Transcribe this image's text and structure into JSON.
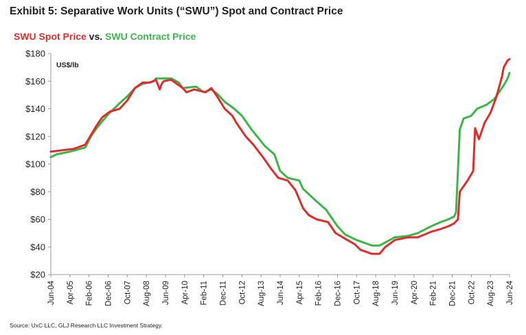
{
  "header": {
    "exhibit_title": "Exhibit 5: Separative Work Units (“SWU”) Spot and Contract Price"
  },
  "footer": {
    "source": "Source: UxC LLC, GLJ Research LLC Investment Strategy."
  },
  "colors": {
    "spot": "#e02b2b",
    "contract": "#3bb54a",
    "text": "#1f1f1f",
    "axis": "#999999"
  },
  "chart_data": {
    "type": "line",
    "title_parts": {
      "spot": "SWU Spot Price",
      "vs": " vs. ",
      "contract": "SWU Contract Price"
    },
    "unit_label": "US$/lb",
    "ylim": [
      20,
      180
    ],
    "yticks": [
      20,
      40,
      60,
      80,
      100,
      120,
      140,
      160,
      180
    ],
    "ytick_labels": [
      "$20",
      "$40",
      "$60",
      "$80",
      "$100",
      "$120",
      "$140",
      "$160",
      "$180"
    ],
    "xlim": [
      "2004-06",
      "2024-06"
    ],
    "xticks": [
      "2004-06",
      "2005-04",
      "2006-02",
      "2006-12",
      "2007-10",
      "2008-08",
      "2009-06",
      "2010-04",
      "2011-02",
      "2011-12",
      "2012-10",
      "2013-08",
      "2014-06",
      "2015-04",
      "2016-02",
      "2016-12",
      "2017-10",
      "2018-08",
      "2019-06",
      "2020-04",
      "2021-02",
      "2021-12",
      "2022-10",
      "2023-08",
      "2024-06"
    ],
    "xtick_labels": [
      "Jun-04",
      "Apr-05",
      "Feb-06",
      "Dec-06",
      "Oct-07",
      "Aug-08",
      "Jun-09",
      "Apr-10",
      "Feb-11",
      "Dec-11",
      "Oct-12",
      "Aug-13",
      "Jun-14",
      "Apr-15",
      "Feb-16",
      "Dec-16",
      "Oct-17",
      "Aug-18",
      "Jun-19",
      "Apr-20",
      "Feb-21",
      "Dec-21",
      "Oct-22",
      "Aug-23",
      "Jun-24"
    ],
    "legend": "none",
    "grid": false,
    "series": [
      {
        "name": "SWU Spot Price",
        "color": "#e02b2b",
        "points": [
          [
            "2004-06",
            109
          ],
          [
            "2005-06",
            111
          ],
          [
            "2005-12",
            114
          ],
          [
            "2006-03",
            121
          ],
          [
            "2006-06",
            128
          ],
          [
            "2006-09",
            134
          ],
          [
            "2007-01",
            138
          ],
          [
            "2007-06",
            140
          ],
          [
            "2007-10",
            146
          ],
          [
            "2008-02",
            155
          ],
          [
            "2008-06",
            159
          ],
          [
            "2008-10",
            159
          ],
          [
            "2009-01",
            161
          ],
          [
            "2009-03",
            154
          ],
          [
            "2009-04",
            158
          ],
          [
            "2009-05",
            160
          ],
          [
            "2009-09",
            161
          ],
          [
            "2010-03",
            155
          ],
          [
            "2010-05",
            152
          ],
          [
            "2010-09",
            154
          ],
          [
            "2011-03",
            152
          ],
          [
            "2011-06",
            155
          ],
          [
            "2011-09",
            149
          ],
          [
            "2012-01",
            140
          ],
          [
            "2012-05",
            135
          ],
          [
            "2012-07",
            130
          ],
          [
            "2012-12",
            120
          ],
          [
            "2013-04",
            114
          ],
          [
            "2013-09",
            105
          ],
          [
            "2014-01",
            97
          ],
          [
            "2014-05",
            90
          ],
          [
            "2014-10",
            88
          ],
          [
            "2015-02",
            81
          ],
          [
            "2015-06",
            68
          ],
          [
            "2015-09",
            63
          ],
          [
            "2016-01",
            60
          ],
          [
            "2016-07",
            58
          ],
          [
            "2016-11",
            50
          ],
          [
            "2017-04",
            46
          ],
          [
            "2017-09",
            42
          ],
          [
            "2017-12",
            38
          ],
          [
            "2018-06",
            35
          ],
          [
            "2018-10",
            35
          ],
          [
            "2019-01",
            40
          ],
          [
            "2019-06",
            45
          ],
          [
            "2020-01",
            47
          ],
          [
            "2020-06",
            47
          ],
          [
            "2021-01",
            51
          ],
          [
            "2021-06",
            53
          ],
          [
            "2021-10",
            55
          ],
          [
            "2022-01",
            57
          ],
          [
            "2022-03",
            60
          ],
          [
            "2022-04",
            80
          ],
          [
            "2022-08",
            88
          ],
          [
            "2022-11",
            95
          ],
          [
            "2022-12",
            126
          ],
          [
            "2023-02",
            118
          ],
          [
            "2023-05",
            130
          ],
          [
            "2023-08",
            137
          ],
          [
            "2023-11",
            148
          ],
          [
            "2024-01",
            158
          ],
          [
            "2024-02",
            163
          ],
          [
            "2024-03",
            170
          ],
          [
            "2024-05",
            175
          ],
          [
            "2024-06",
            176
          ]
        ]
      },
      {
        "name": "SWU Contract Price",
        "color": "#3bb54a",
        "points": [
          [
            "2004-06",
            105
          ],
          [
            "2004-09",
            107
          ],
          [
            "2005-04",
            109
          ],
          [
            "2005-12",
            112
          ],
          [
            "2006-03",
            120
          ],
          [
            "2006-06",
            126
          ],
          [
            "2006-12",
            136
          ],
          [
            "2007-06",
            144
          ],
          [
            "2007-10",
            149
          ],
          [
            "2008-02",
            155
          ],
          [
            "2008-06",
            158
          ],
          [
            "2008-12",
            160
          ],
          [
            "2009-01",
            162
          ],
          [
            "2009-03",
            162
          ],
          [
            "2009-09",
            162
          ],
          [
            "2010-01",
            159
          ],
          [
            "2010-03",
            155
          ],
          [
            "2010-10",
            156
          ],
          [
            "2011-02",
            152
          ],
          [
            "2011-06",
            154
          ],
          [
            "2011-09",
            151
          ],
          [
            "2012-01",
            145
          ],
          [
            "2012-06",
            140
          ],
          [
            "2012-10",
            135
          ],
          [
            "2013-03",
            125
          ],
          [
            "2013-06",
            120
          ],
          [
            "2013-10",
            113
          ],
          [
            "2014-03",
            107
          ],
          [
            "2014-06",
            95
          ],
          [
            "2014-10",
            90
          ],
          [
            "2015-04",
            88
          ],
          [
            "2015-06",
            82
          ],
          [
            "2016-01",
            73
          ],
          [
            "2016-06",
            67
          ],
          [
            "2016-12",
            55
          ],
          [
            "2017-04",
            49
          ],
          [
            "2017-10",
            45
          ],
          [
            "2018-02",
            43
          ],
          [
            "2018-06",
            41
          ],
          [
            "2018-10",
            41
          ],
          [
            "2019-02",
            44
          ],
          [
            "2019-06",
            47
          ],
          [
            "2020-01",
            48
          ],
          [
            "2020-06",
            50
          ],
          [
            "2021-01",
            55
          ],
          [
            "2021-06",
            58
          ],
          [
            "2021-10",
            60
          ],
          [
            "2022-01",
            62
          ],
          [
            "2022-02",
            65
          ],
          [
            "2022-04",
            125
          ],
          [
            "2022-06",
            133
          ],
          [
            "2022-10",
            135
          ],
          [
            "2023-01",
            140
          ],
          [
            "2023-06",
            143
          ],
          [
            "2023-10",
            147
          ],
          [
            "2024-01",
            153
          ],
          [
            "2024-03",
            157
          ],
          [
            "2024-05",
            162
          ],
          [
            "2024-06",
            166
          ]
        ]
      }
    ]
  }
}
